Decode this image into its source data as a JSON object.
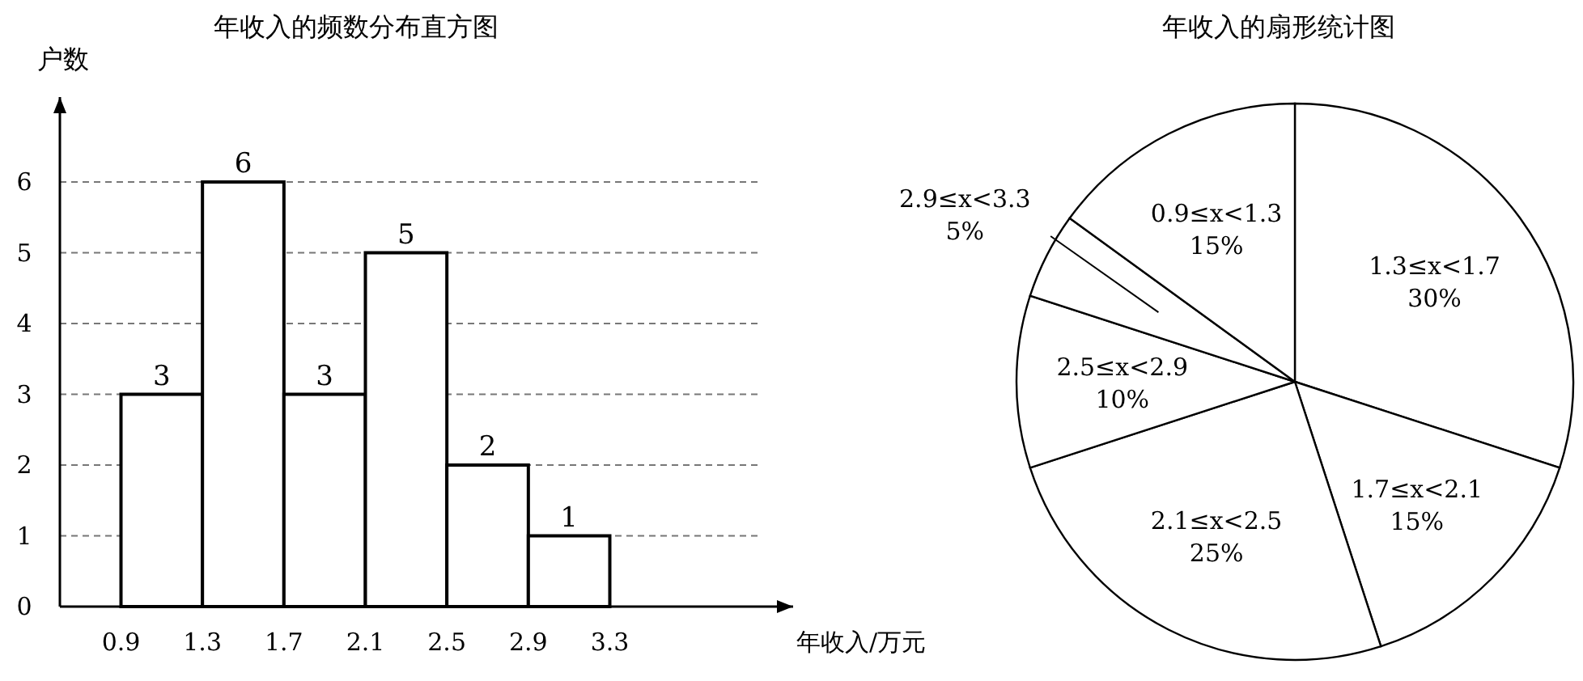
{
  "chart_data": [
    {
      "type": "histogram",
      "title": "年收入的频数分布直方图",
      "ylabel": "户数",
      "xlabel": "年收入/万元",
      "bins": [
        0.9,
        1.3,
        1.7,
        2.1,
        2.5,
        2.9,
        3.3
      ],
      "values": [
        3,
        6,
        3,
        5,
        2,
        1
      ],
      "color": "#ffffff",
      "xlim": [
        0.6,
        4.2
      ],
      "xticks": [
        0.9,
        1.3,
        1.7,
        2.1,
        2.5,
        2.9,
        3.3
      ],
      "ylim": [
        0,
        7.2
      ],
      "yticks": [
        0,
        1,
        2,
        3,
        4,
        5,
        6
      ],
      "grid": "y",
      "data_labels": true
    },
    {
      "type": "pie",
      "title": "年收入的扇形统计图",
      "categories": [
        "1.3≤x<1.7",
        "1.7≤x<2.1",
        "2.1≤x<2.5",
        "2.5≤x<2.9",
        "2.9≤x<3.3",
        "0.9≤x<1.3"
      ],
      "values": [
        30,
        15,
        25,
        10,
        5,
        15
      ],
      "value_labels": [
        "30%",
        "15%",
        "25%",
        "10%",
        "5%",
        "15%"
      ],
      "colors": [
        "#ffffff",
        "#ffffff",
        "#ffffff",
        "#ffffff",
        "#ffffff",
        "#ffffff"
      ]
    }
  ]
}
